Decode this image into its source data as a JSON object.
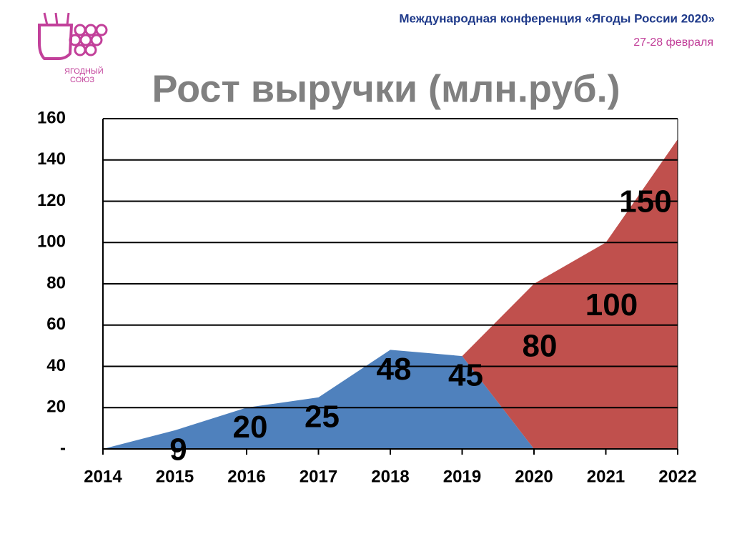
{
  "header": {
    "conference": "Международная конференция «Ягоды России 2020»",
    "dates": "27-28 февраля",
    "logo_text": [
      "ЯГОДНЫЙ",
      "СОЮЗ"
    ]
  },
  "chart_data": {
    "type": "stacked-area",
    "title": "Рост выручки (млн.руб.)",
    "categories": [
      "2014",
      "2015",
      "2016",
      "2017",
      "2018",
      "2019",
      "2020",
      "2021",
      "2022"
    ],
    "series": [
      {
        "color": "#4f81bd",
        "values": [
          0,
          9,
          20,
          25,
          48,
          45,
          0,
          0,
          0
        ]
      },
      {
        "color": "#c0504d",
        "values": [
          0,
          0,
          0,
          0,
          0,
          0,
          80,
          100,
          150
        ]
      }
    ],
    "ylim": [
      0,
      160
    ],
    "yticks": [
      {
        "value": 0,
        "label": "-"
      },
      20,
      40,
      60,
      80,
      100,
      120,
      140,
      160
    ],
    "grid": true
  }
}
